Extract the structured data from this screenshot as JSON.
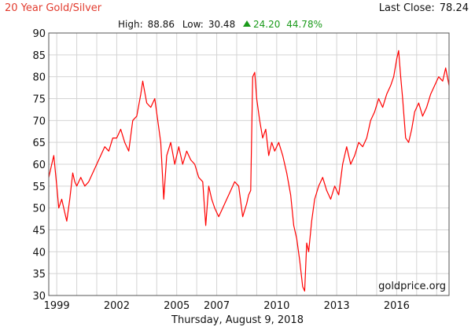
{
  "header": {
    "title": "20 Year Gold/Silver",
    "last_close_label": "Last Close:",
    "last_close_value": "78.24"
  },
  "stats": {
    "high_label": "High:",
    "high_value": "88.86",
    "low_label": "Low:",
    "low_value": "30.48",
    "change": "24.20",
    "change_pct": "44.78%",
    "up_color": "#1a9a1a"
  },
  "watermark": "goldprice.org",
  "footer_date": "Thursday, August 9, 2018",
  "colors": {
    "line": "#ff0000",
    "grid": "#d4d4d4",
    "title": "#e23b2e"
  },
  "chart_data": {
    "type": "line",
    "title": "20 Year Gold/Silver",
    "xlabel": "",
    "ylabel": "",
    "ylim": [
      30,
      90
    ],
    "xlim": [
      1998.6,
      2018.62
    ],
    "grid": true,
    "x_ticks": [
      1999,
      2002,
      2005,
      2007,
      2010,
      2013,
      2016
    ],
    "x_tick_labels": [
      "1999",
      "2002",
      "2005",
      "2007",
      "2010",
      "2013",
      "2016"
    ],
    "y_ticks": [
      30,
      35,
      40,
      45,
      50,
      55,
      60,
      65,
      70,
      75,
      80,
      85,
      90
    ],
    "series": [
      {
        "x": [
          1998.6,
          1998.75,
          1998.85,
          1999.0,
          1999.1,
          1999.25,
          1999.4,
          1999.5,
          1999.65,
          1999.8,
          1999.9,
          2000.0,
          2000.2,
          2000.4,
          2000.6,
          2000.8,
          2001.0,
          2001.2,
          2001.4,
          2001.6,
          2001.8,
          2002.0,
          2002.2,
          2002.4,
          2002.6,
          2002.8,
          2003.0,
          2003.2,
          2003.3,
          2003.5,
          2003.7,
          2003.9,
          2004.05,
          2004.2,
          2004.35,
          2004.5,
          2004.7,
          2004.9,
          2005.1,
          2005.3,
          2005.5,
          2005.7,
          2005.9,
          2006.1,
          2006.3,
          2006.45,
          2006.6,
          2006.75,
          2006.9,
          2007.1,
          2007.3,
          2007.5,
          2007.7,
          2007.9,
          2008.1,
          2008.3,
          2008.5,
          2008.6,
          2008.7,
          2008.8,
          2008.9,
          2009.0,
          2009.15,
          2009.3,
          2009.45,
          2009.6,
          2009.75,
          2009.9,
          2010.1,
          2010.3,
          2010.5,
          2010.7,
          2010.85,
          2011.0,
          2011.15,
          2011.3,
          2011.4,
          2011.5,
          2011.6,
          2011.75,
          2011.9,
          2012.1,
          2012.3,
          2012.5,
          2012.7,
          2012.9,
          2013.1,
          2013.3,
          2013.5,
          2013.7,
          2013.9,
          2014.1,
          2014.3,
          2014.5,
          2014.7,
          2014.9,
          2015.1,
          2015.3,
          2015.5,
          2015.7,
          2015.85,
          2016.0,
          2016.1,
          2016.2,
          2016.3,
          2016.45,
          2016.6,
          2016.75,
          2016.9,
          2017.1,
          2017.3,
          2017.5,
          2017.7,
          2017.9,
          2018.1,
          2018.3,
          2018.45,
          2018.62
        ],
        "y": [
          57,
          60,
          62,
          55,
          50,
          52,
          49,
          47,
          52,
          58,
          56,
          55,
          57,
          55,
          56,
          58,
          60,
          62,
          64,
          63,
          66,
          66,
          68,
          65,
          63,
          70,
          71,
          76,
          79,
          74,
          73,
          75,
          70,
          65,
          52,
          62,
          65,
          60,
          64,
          60,
          63,
          61,
          60,
          57,
          56,
          46,
          55,
          52,
          50,
          48,
          50,
          52,
          54,
          56,
          55,
          48,
          51,
          53,
          54,
          80,
          81,
          75,
          70,
          66,
          68,
          62,
          65,
          63,
          65,
          62,
          58,
          53,
          46,
          43,
          38,
          32,
          31,
          42,
          40,
          47,
          52,
          55,
          57,
          54,
          52,
          55,
          53,
          60,
          64,
          60,
          62,
          65,
          64,
          66,
          70,
          72,
          75,
          73,
          76,
          78,
          80,
          84,
          86,
          80,
          75,
          66,
          65,
          68,
          72,
          74,
          71,
          73,
          76,
          78,
          80,
          79,
          82,
          78
        ]
      }
    ]
  }
}
